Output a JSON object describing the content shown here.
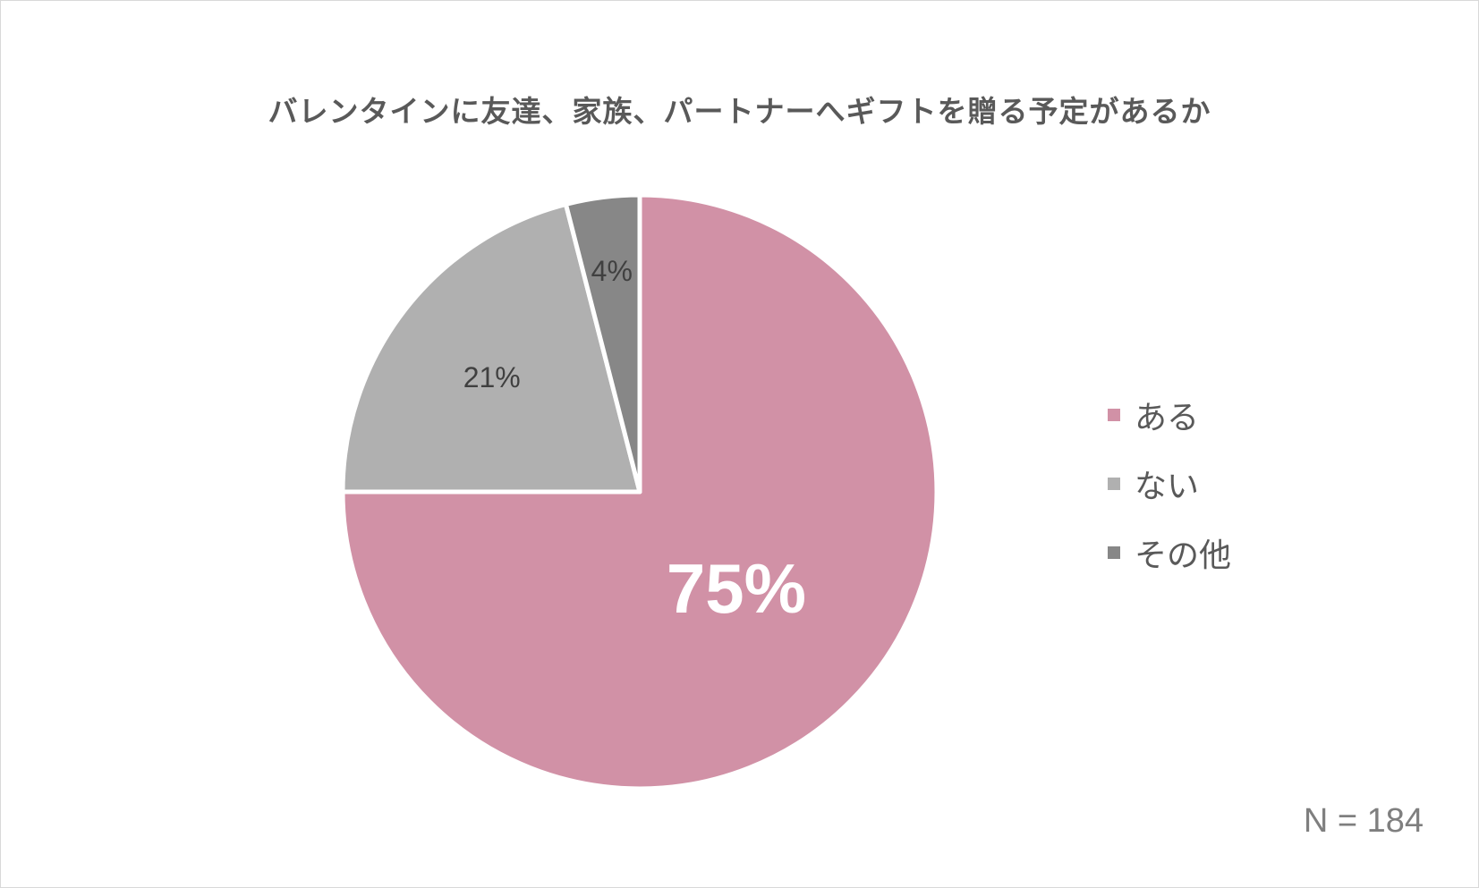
{
  "chart_data": {
    "type": "pie",
    "title": "バレンタインに友達、家族、パートナーへギフトを贈る予定があるか",
    "categories": [
      "ある",
      "ない",
      "その他"
    ],
    "values": [
      75,
      21,
      4
    ],
    "value_labels": [
      "75%",
      "21%",
      "4%"
    ],
    "colors": [
      "#d191a6",
      "#b0b0b0",
      "#878787"
    ],
    "label_colors": [
      "#ffffff",
      "#404040",
      "#404040"
    ],
    "start_angle_deg": 0,
    "direction": "clockwise",
    "legend_placement": "right",
    "note": "N = 184"
  }
}
